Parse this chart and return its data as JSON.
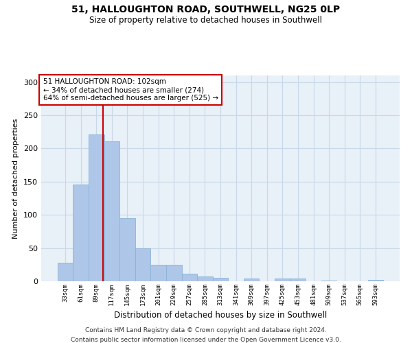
{
  "title1": "51, HALLOUGHTON ROAD, SOUTHWELL, NG25 0LP",
  "title2": "Size of property relative to detached houses in Southwell",
  "xlabel": "Distribution of detached houses by size in Southwell",
  "ylabel": "Number of detached properties",
  "categories": [
    "33sqm",
    "61sqm",
    "89sqm",
    "117sqm",
    "145sqm",
    "173sqm",
    "201sqm",
    "229sqm",
    "257sqm",
    "285sqm",
    "313sqm",
    "341sqm",
    "369sqm",
    "397sqm",
    "425sqm",
    "453sqm",
    "481sqm",
    "509sqm",
    "537sqm",
    "565sqm",
    "593sqm"
  ],
  "values": [
    28,
    146,
    221,
    211,
    95,
    50,
    25,
    25,
    11,
    7,
    5,
    0,
    4,
    0,
    4,
    4,
    0,
    1,
    0,
    0,
    2
  ],
  "bar_color": "#aec6e8",
  "bar_edge_color": "#8ab4d8",
  "grid_color": "#c8d8e8",
  "vline_color": "#cc0000",
  "vline_x": 2.45,
  "annotation_text": "51 HALLOUGHTON ROAD: 102sqm\n← 34% of detached houses are smaller (274)\n64% of semi-detached houses are larger (525) →",
  "annotation_box_color": "white",
  "annotation_box_edge": "#cc0000",
  "ylim": [
    0,
    310
  ],
  "yticks": [
    0,
    50,
    100,
    150,
    200,
    250,
    300
  ],
  "footer1": "Contains HM Land Registry data © Crown copyright and database right 2024.",
  "footer2": "Contains public sector information licensed under the Open Government Licence v3.0.",
  "bg_color": "#e8f0f8"
}
